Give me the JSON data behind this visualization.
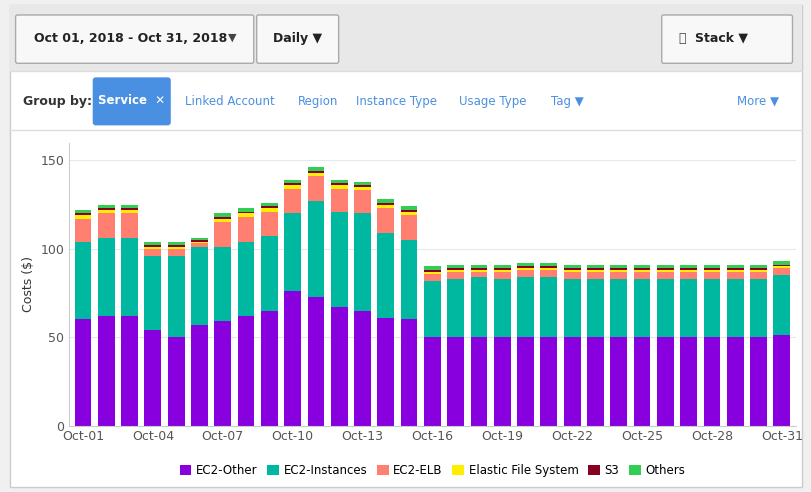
{
  "ylabel": "Costs ($)",
  "ylim": [
    0,
    160
  ],
  "yticks": [
    0,
    50,
    100,
    150
  ],
  "xtick_labels": [
    "Oct-01",
    "Oct-04",
    "Oct-07",
    "Oct-10",
    "Oct-13",
    "Oct-16",
    "Oct-19",
    "Oct-22",
    "Oct-25",
    "Oct-28",
    "Oct-31"
  ],
  "bg_color": "#f0f0f0",
  "panel_color": "#ffffff",
  "colors": {
    "EC2-Other": "#8800dd",
    "EC2-Instances": "#00b8a0",
    "EC2-ELB": "#ff8070",
    "Elastic File System": "#ffee00",
    "S3": "#880022",
    "Others": "#33cc55"
  },
  "series": {
    "EC2-Other": [
      60,
      62,
      62,
      54,
      50,
      57,
      59,
      62,
      65,
      76,
      73,
      67,
      65,
      61,
      60,
      50,
      50,
      50,
      50,
      50,
      50,
      50,
      50,
      50,
      50,
      50,
      50,
      50,
      50,
      50,
      51
    ],
    "EC2-Instances": [
      44,
      44,
      44,
      42,
      46,
      44,
      42,
      42,
      42,
      44,
      54,
      54,
      55,
      48,
      45,
      32,
      33,
      34,
      33,
      34,
      34,
      33,
      33,
      33,
      33,
      33,
      33,
      33,
      33,
      33,
      34
    ],
    "EC2-ELB": [
      13,
      14,
      14,
      4,
      4,
      2,
      14,
      14,
      14,
      14,
      14,
      13,
      13,
      14,
      14,
      4,
      4,
      3,
      4,
      4,
      4,
      4,
      4,
      4,
      4,
      4,
      4,
      4,
      4,
      4,
      4
    ],
    "Elastic File System": [
      2,
      2,
      2,
      1,
      1,
      1,
      2,
      2,
      2,
      2,
      2,
      2,
      2,
      2,
      2,
      1,
      1,
      1,
      1,
      1,
      1,
      1,
      1,
      1,
      1,
      1,
      1,
      1,
      1,
      1,
      1
    ],
    "S3": [
      1,
      1,
      1,
      1,
      1,
      1,
      1,
      1,
      1,
      1,
      1,
      1,
      1,
      1,
      1,
      1,
      1,
      1,
      1,
      1,
      1,
      1,
      1,
      1,
      1,
      1,
      1,
      1,
      1,
      1,
      1
    ],
    "Others": [
      2,
      2,
      2,
      2,
      2,
      1,
      2,
      2,
      2,
      2,
      2,
      2,
      2,
      2,
      2,
      2,
      2,
      2,
      2,
      2,
      2,
      2,
      2,
      2,
      2,
      2,
      2,
      2,
      2,
      2,
      2
    ]
  },
  "legend_order": [
    "EC2-Other",
    "EC2-Instances",
    "EC2-ELB",
    "Elastic File System",
    "S3",
    "Others"
  ],
  "header_date": "Oct 01, 2018 - Oct 31, 2018",
  "header_granularity": "Daily",
  "header_view": "Stack"
}
